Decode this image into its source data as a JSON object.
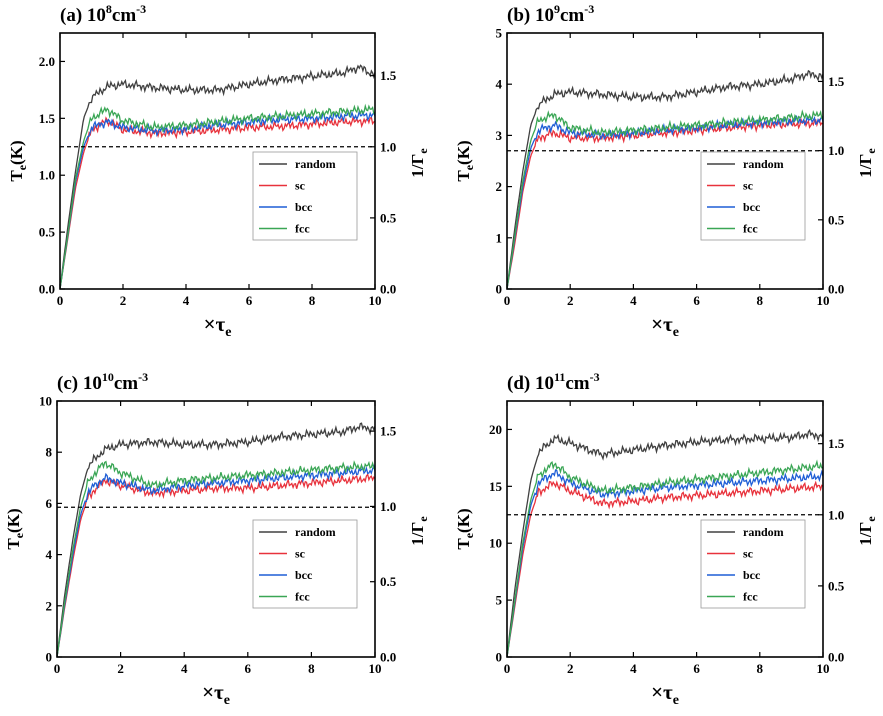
{
  "chart_data": [
    {
      "type": "line",
      "panel_label": "(a) 10",
      "panel_exp": "8",
      "panel_unit": "cm",
      "panel_unit_exp": "-3",
      "xlim": [
        0,
        10
      ],
      "ylim": [
        0,
        2.25
      ],
      "y_ticks": [
        0,
        0.5,
        1.0,
        1.5,
        2.0
      ],
      "y_tick_labels": [
        "0.0",
        "0.5",
        "1.0",
        "1.5",
        "2.0"
      ],
      "y2_max": 1.8,
      "y2_ticks": [
        0,
        0.5,
        1.0,
        1.5
      ],
      "dashed_y": 1.25,
      "series": [
        {
          "name": "random",
          "color": "#404040",
          "x": [
            0,
            0.25,
            0.5,
            0.75,
            1,
            1.5,
            2,
            3,
            4,
            5,
            6,
            7,
            8,
            9,
            9.5,
            10
          ],
          "y": [
            0,
            0.55,
            1.05,
            1.5,
            1.68,
            1.78,
            1.8,
            1.77,
            1.75,
            1.75,
            1.8,
            1.84,
            1.87,
            1.9,
            1.95,
            1.88
          ]
        },
        {
          "name": "sc",
          "color": "#e8323c",
          "x": [
            0,
            0.25,
            0.5,
            0.75,
            1,
            1.5,
            2,
            3,
            4,
            5,
            6,
            7,
            8,
            9,
            10
          ],
          "y": [
            0,
            0.45,
            0.9,
            1.2,
            1.4,
            1.48,
            1.4,
            1.37,
            1.38,
            1.4,
            1.42,
            1.43,
            1.45,
            1.47,
            1.48
          ]
        },
        {
          "name": "bcc",
          "color": "#1f5fd6",
          "x": [
            0,
            0.25,
            0.5,
            0.75,
            1,
            1.5,
            2,
            3,
            4,
            5,
            6,
            7,
            8,
            9,
            10
          ],
          "y": [
            0,
            0.47,
            0.95,
            1.25,
            1.42,
            1.47,
            1.42,
            1.39,
            1.41,
            1.44,
            1.47,
            1.49,
            1.5,
            1.52,
            1.53
          ]
        },
        {
          "name": "fcc",
          "color": "#3aa655",
          "x": [
            0,
            0.25,
            0.5,
            0.75,
            1,
            1.5,
            2,
            3,
            4,
            5,
            6,
            7,
            8,
            9,
            10
          ],
          "y": [
            0,
            0.48,
            0.98,
            1.3,
            1.5,
            1.58,
            1.48,
            1.42,
            1.44,
            1.47,
            1.5,
            1.52,
            1.54,
            1.56,
            1.58
          ]
        }
      ]
    },
    {
      "type": "line",
      "panel_label": "(b) 10",
      "panel_exp": "9",
      "panel_unit": "cm",
      "panel_unit_exp": "-3",
      "xlim": [
        0,
        10
      ],
      "ylim": [
        0,
        5
      ],
      "y_ticks": [
        0,
        1,
        2,
        3,
        4,
        5
      ],
      "y_tick_labels": [
        "0",
        "1",
        "2",
        "3",
        "4",
        "5"
      ],
      "y2_max": 1.85,
      "y2_ticks": [
        0,
        0.5,
        1.0,
        1.5
      ],
      "dashed_y": 2.7,
      "series": [
        {
          "name": "random",
          "color": "#404040",
          "x": [
            0,
            0.25,
            0.5,
            0.75,
            1,
            1.5,
            2,
            3,
            4,
            5,
            6,
            7,
            8,
            9,
            9.5,
            10
          ],
          "y": [
            0,
            1.2,
            2.3,
            3.2,
            3.6,
            3.8,
            3.85,
            3.8,
            3.75,
            3.75,
            3.85,
            3.95,
            4.0,
            4.1,
            4.2,
            4.15
          ]
        },
        {
          "name": "sc",
          "color": "#e8323c",
          "x": [
            0,
            0.25,
            0.5,
            0.75,
            1,
            1.5,
            2,
            3,
            4,
            5,
            6,
            7,
            8,
            9,
            10
          ],
          "y": [
            0,
            0.9,
            1.9,
            2.6,
            2.95,
            3.05,
            2.95,
            2.95,
            3.0,
            3.05,
            3.1,
            3.15,
            3.2,
            3.22,
            3.25
          ]
        },
        {
          "name": "bcc",
          "color": "#1f5fd6",
          "x": [
            0,
            0.25,
            0.5,
            0.75,
            1,
            1.5,
            2,
            3,
            4,
            5,
            6,
            7,
            8,
            9,
            10
          ],
          "y": [
            0,
            1.0,
            2.0,
            2.75,
            3.1,
            3.2,
            3.05,
            3.0,
            3.05,
            3.1,
            3.15,
            3.2,
            3.25,
            3.28,
            3.3
          ]
        },
        {
          "name": "fcc",
          "color": "#3aa655",
          "x": [
            0,
            0.25,
            0.5,
            0.75,
            1,
            1.5,
            2,
            3,
            4,
            5,
            6,
            7,
            8,
            9,
            10
          ],
          "y": [
            0,
            1.05,
            2.1,
            2.9,
            3.3,
            3.4,
            3.15,
            3.05,
            3.1,
            3.15,
            3.2,
            3.25,
            3.3,
            3.35,
            3.4
          ]
        }
      ]
    },
    {
      "type": "line",
      "panel_label": "(c) 10",
      "panel_exp": "10",
      "panel_unit": "cm",
      "panel_unit_exp": "-3",
      "xlim": [
        0,
        10
      ],
      "ylim": [
        0,
        10
      ],
      "y_ticks": [
        0,
        2,
        4,
        6,
        8,
        10
      ],
      "y_tick_labels": [
        "0",
        "2",
        "4",
        "6",
        "8",
        "10"
      ],
      "y2_max": 1.7,
      "y2_ticks": [
        0,
        0.5,
        1.0,
        1.5
      ],
      "dashed_y": 5.85,
      "series": [
        {
          "name": "random",
          "color": "#404040",
          "x": [
            0,
            0.25,
            0.5,
            0.75,
            1,
            1.5,
            2,
            3,
            4,
            5,
            6,
            7,
            8,
            9,
            9.5,
            10
          ],
          "y": [
            0,
            2.5,
            4.6,
            6.4,
            7.5,
            8.1,
            8.3,
            8.4,
            8.3,
            8.3,
            8.4,
            8.6,
            8.7,
            8.8,
            9.0,
            8.9
          ]
        },
        {
          "name": "sc",
          "color": "#e8323c",
          "x": [
            0,
            0.25,
            0.5,
            0.75,
            1,
            1.5,
            2,
            3,
            4,
            5,
            6,
            7,
            8,
            9,
            10
          ],
          "y": [
            0,
            2.0,
            3.8,
            5.4,
            6.3,
            6.9,
            6.7,
            6.4,
            6.5,
            6.6,
            6.6,
            6.7,
            6.8,
            6.9,
            7.0
          ]
        },
        {
          "name": "bcc",
          "color": "#1f5fd6",
          "x": [
            0,
            0.25,
            0.5,
            0.75,
            1,
            1.5,
            2,
            3,
            4,
            5,
            6,
            7,
            8,
            9,
            10
          ],
          "y": [
            0,
            2.1,
            4.0,
            5.6,
            6.5,
            7.0,
            6.8,
            6.5,
            6.7,
            6.8,
            6.9,
            7.0,
            7.1,
            7.2,
            7.3
          ]
        },
        {
          "name": "fcc",
          "color": "#3aa655",
          "x": [
            0,
            0.25,
            0.5,
            0.75,
            1,
            1.5,
            2,
            3,
            4,
            5,
            6,
            7,
            8,
            9,
            10
          ],
          "y": [
            0,
            2.2,
            4.2,
            5.9,
            6.9,
            7.6,
            7.2,
            6.7,
            6.9,
            7.0,
            7.1,
            7.2,
            7.3,
            7.4,
            7.45
          ]
        }
      ]
    },
    {
      "type": "line",
      "panel_label": "(d) 10",
      "panel_exp": "11",
      "panel_unit": "cm",
      "panel_unit_exp": "-3",
      "xlim": [
        0,
        10
      ],
      "ylim": [
        0,
        22.5
      ],
      "y_ticks": [
        0,
        5,
        10,
        15,
        20
      ],
      "y_tick_labels": [
        "0",
        "5",
        "10",
        "15",
        "20"
      ],
      "y2_max": 1.8,
      "y2_ticks": [
        0,
        0.5,
        1.0,
        1.5
      ],
      "dashed_y": 12.5,
      "series": [
        {
          "name": "random",
          "color": "#404040",
          "x": [
            0,
            0.25,
            0.5,
            0.75,
            1,
            1.5,
            2,
            3,
            4,
            5,
            6,
            7,
            8,
            9,
            9.5,
            10
          ],
          "y": [
            0,
            6.0,
            11.0,
            15.5,
            18.0,
            19.2,
            18.8,
            17.8,
            18.2,
            18.6,
            18.9,
            19.1,
            19.2,
            19.3,
            19.6,
            19.4
          ]
        },
        {
          "name": "sc",
          "color": "#e8323c",
          "x": [
            0,
            0.25,
            0.5,
            0.75,
            1,
            1.5,
            2,
            3,
            4,
            5,
            6,
            7,
            8,
            9,
            10
          ],
          "y": [
            0,
            4.5,
            9.0,
            12.5,
            14.5,
            15.3,
            14.6,
            13.5,
            13.7,
            14.0,
            14.2,
            14.4,
            14.6,
            14.8,
            15.0
          ]
        },
        {
          "name": "bcc",
          "color": "#1f5fd6",
          "x": [
            0,
            0.25,
            0.5,
            0.75,
            1,
            1.5,
            2,
            3,
            4,
            5,
            6,
            7,
            8,
            9,
            10
          ],
          "y": [
            0,
            4.8,
            9.6,
            13.3,
            15.3,
            16.2,
            15.3,
            14.3,
            14.6,
            14.9,
            15.1,
            15.3,
            15.5,
            15.7,
            15.9
          ]
        },
        {
          "name": "fcc",
          "color": "#3aa655",
          "x": [
            0,
            0.25,
            0.5,
            0.75,
            1,
            1.5,
            2,
            3,
            4,
            5,
            6,
            7,
            8,
            9,
            10
          ],
          "y": [
            0,
            5.0,
            10.0,
            13.8,
            16.0,
            17.0,
            15.8,
            14.6,
            14.9,
            15.3,
            15.6,
            15.9,
            16.2,
            16.5,
            16.8
          ]
        }
      ]
    }
  ],
  "common": {
    "x_ticks": [
      0,
      2,
      4,
      6,
      8,
      10
    ],
    "x_tick_labels": [
      "0",
      "2",
      "4",
      "6",
      "8",
      "10"
    ],
    "y2_tick_labels": [
      "0.0",
      "0.5",
      "1.0",
      "1.5"
    ],
    "ylabel_main": "T",
    "ylabel_sub": "e",
    "ylabel_unit": "(K)",
    "y2label_main": "1/Γ",
    "y2label_sub": "e",
    "xlabel_main": "×τ",
    "xlabel_sub": "e"
  }
}
